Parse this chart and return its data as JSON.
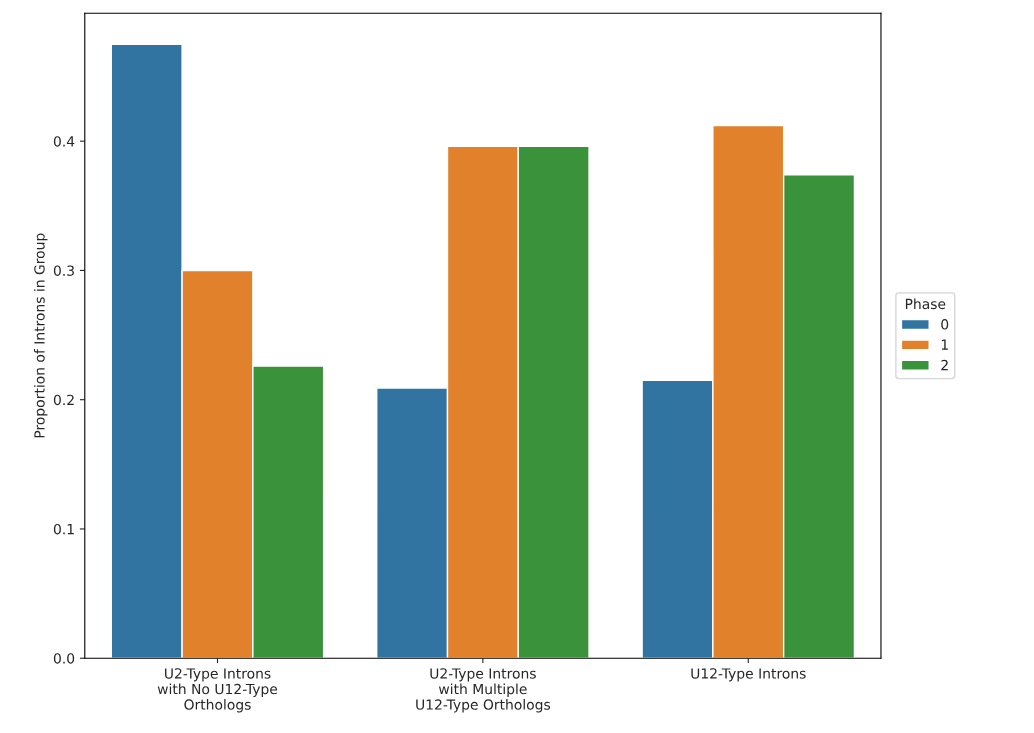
{
  "chart_data": {
    "type": "bar",
    "ylabel": "Proportion of Introns in Group",
    "legend_title": "Phase",
    "categories": [
      "U2-Type Introns\nwith No U12-Type\nOrthologs",
      "U2-Type Introns\nwith Multiple\nU12-Type Orthologs",
      "U12-Type Introns"
    ],
    "series": [
      {
        "name": "0",
        "color": "#3274a1",
        "values": [
          0.475,
          0.209,
          0.215
        ]
      },
      {
        "name": "1",
        "color": "#e1812c",
        "values": [
          0.3,
          0.396,
          0.412
        ]
      },
      {
        "name": "2",
        "color": "#3a923a",
        "values": [
          0.226,
          0.396,
          0.374
        ]
      }
    ],
    "ylim": [
      0,
      0.499
    ],
    "yticks": [
      {
        "value": 0,
        "label": "0.0"
      },
      0.1,
      0.2,
      0.3,
      0.4
    ],
    "grid": false,
    "legend": "right"
  }
}
